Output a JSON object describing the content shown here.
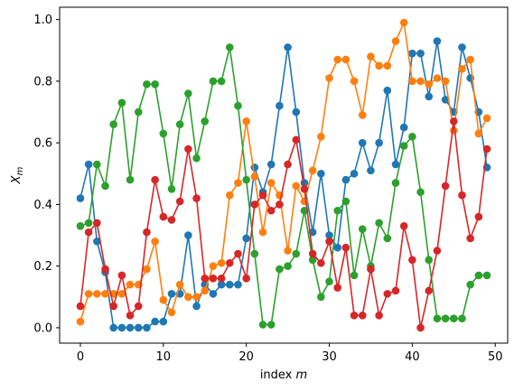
{
  "chart_data": {
    "type": "line",
    "markers": true,
    "xlabel_text": "index ",
    "xlabel_var": "m",
    "ylabel_var": "X",
    "ylabel_sub": "m",
    "xlim": [
      -2.5,
      51.5
    ],
    "ylim": [
      -0.05,
      1.04
    ],
    "xticks": [
      0,
      10,
      20,
      30,
      40,
      50
    ],
    "xtick_labels": [
      "0",
      "10",
      "20",
      "30",
      "40",
      "50"
    ],
    "yticks": [
      0.0,
      0.2,
      0.4,
      0.6,
      0.8,
      1.0
    ],
    "ytick_labels": [
      "0.0",
      "0.2",
      "0.4",
      "0.6",
      "0.8",
      "1.0"
    ],
    "grid": false,
    "x": [
      0,
      1,
      2,
      3,
      4,
      5,
      6,
      7,
      8,
      9,
      10,
      11,
      12,
      13,
      14,
      15,
      16,
      17,
      18,
      19,
      20,
      21,
      22,
      23,
      24,
      25,
      26,
      27,
      28,
      29,
      30,
      31,
      32,
      33,
      34,
      35,
      36,
      37,
      38,
      39,
      40,
      41,
      42,
      43,
      44,
      45,
      46,
      47,
      48,
      49
    ],
    "series": [
      {
        "color": "#1f77b4",
        "values": [
          0.42,
          0.53,
          0.28,
          0.18,
          0.0,
          0.0,
          0.0,
          0.0,
          0.0,
          0.02,
          0.02,
          0.11,
          0.11,
          0.3,
          0.07,
          0.14,
          0.11,
          0.14,
          0.14,
          0.14,
          0.29,
          0.52,
          0.44,
          0.53,
          0.72,
          0.91,
          0.7,
          0.47,
          0.31,
          0.5,
          0.3,
          0.26,
          0.48,
          0.5,
          0.6,
          0.51,
          0.6,
          0.77,
          0.53,
          0.65,
          0.89,
          0.89,
          0.75,
          0.93,
          0.74,
          0.7,
          0.91,
          0.81,
          0.7,
          0.52
        ]
      },
      {
        "color": "#ff7f0e",
        "values": [
          0.02,
          0.11,
          0.11,
          0.11,
          0.11,
          0.11,
          0.14,
          0.14,
          0.19,
          0.28,
          0.09,
          0.05,
          0.14,
          0.1,
          0.1,
          0.12,
          0.2,
          0.21,
          0.43,
          0.47,
          0.67,
          0.49,
          0.31,
          0.47,
          0.43,
          0.25,
          0.46,
          0.41,
          0.51,
          0.62,
          0.81,
          0.87,
          0.87,
          0.8,
          0.69,
          0.88,
          0.85,
          0.85,
          0.93,
          0.99,
          0.8,
          0.8,
          0.79,
          0.81,
          0.8,
          0.64,
          0.84,
          0.87,
          0.63,
          0.68
        ]
      },
      {
        "color": "#2ca02c",
        "values": [
          0.33,
          0.34,
          0.53,
          0.46,
          0.66,
          0.73,
          0.48,
          0.7,
          0.79,
          0.79,
          0.63,
          0.45,
          0.66,
          0.76,
          0.55,
          0.67,
          0.8,
          0.8,
          0.91,
          0.72,
          0.48,
          0.24,
          0.01,
          0.01,
          0.19,
          0.2,
          0.24,
          0.38,
          0.22,
          0.1,
          0.15,
          0.38,
          0.41,
          0.17,
          0.32,
          0.2,
          0.34,
          0.29,
          0.47,
          0.59,
          0.62,
          0.44,
          0.22,
          0.03,
          0.03,
          0.03,
          0.03,
          0.14,
          0.17,
          0.17
        ]
      },
      {
        "color": "#d62728",
        "values": [
          0.07,
          0.31,
          0.34,
          0.19,
          0.07,
          0.17,
          0.04,
          0.07,
          0.31,
          0.48,
          0.36,
          0.35,
          0.41,
          0.58,
          0.42,
          0.16,
          0.16,
          0.16,
          0.21,
          0.24,
          0.16,
          0.4,
          0.43,
          0.38,
          0.4,
          0.53,
          0.61,
          0.45,
          0.24,
          0.21,
          0.28,
          0.13,
          0.26,
          0.04,
          0.04,
          0.19,
          0.04,
          0.11,
          0.12,
          0.33,
          0.22,
          0.0,
          0.12,
          0.25,
          0.46,
          0.67,
          0.43,
          0.29,
          0.36,
          0.58
        ]
      }
    ]
  }
}
